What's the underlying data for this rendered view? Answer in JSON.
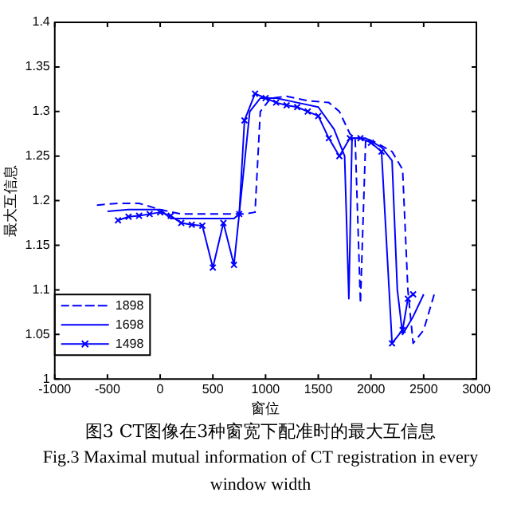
{
  "chart_data": {
    "type": "line",
    "title": "图3   CT图像在3种窗宽下配准时的最大互信息",
    "subtitle": "Fig.3   Maximal mutual information of CT registration in every window width",
    "xlabel": "窗位",
    "ylabel": "最大互信息",
    "xlim": [
      -1000,
      3000
    ],
    "xticks": [
      -1000,
      -500,
      0,
      500,
      1000,
      1500,
      2000,
      2500,
      3000
    ],
    "ylim": [
      1,
      1.4
    ],
    "yticks": [
      1,
      1.05,
      1.1,
      1.15,
      1.2,
      1.25,
      1.3,
      1.35,
      1.4
    ],
    "grid": false,
    "legend": "bottom left",
    "series": [
      {
        "name": "1898",
        "color": "#0000ff",
        "line_style": "dashed",
        "marker": "none",
        "x": [
          -600,
          -400,
          -200,
          0,
          200,
          400,
          600,
          800,
          900,
          950,
          1050,
          1200,
          1400,
          1600,
          1700,
          1800,
          1850,
          1900,
          1950,
          2050,
          2200,
          2300,
          2350,
          2400,
          2500,
          2600
        ],
        "values": [
          1.195,
          1.197,
          1.197,
          1.19,
          1.185,
          1.185,
          1.185,
          1.185,
          1.187,
          1.3,
          1.315,
          1.317,
          1.312,
          1.31,
          1.3,
          1.275,
          1.27,
          1.085,
          1.27,
          1.265,
          1.255,
          1.235,
          1.1,
          1.04,
          1.055,
          1.095
        ]
      },
      {
        "name": "1698",
        "color": "#0000ff",
        "line_style": "solid",
        "marker": "none",
        "x": [
          -500,
          -300,
          0,
          100,
          300,
          500,
          700,
          750,
          850,
          950,
          1100,
          1300,
          1500,
          1650,
          1750,
          1790,
          1820,
          1950,
          2100,
          2200,
          2250,
          2300,
          2400,
          2500
        ],
        "values": [
          1.188,
          1.19,
          1.19,
          1.18,
          1.18,
          1.18,
          1.18,
          1.185,
          1.3,
          1.315,
          1.315,
          1.31,
          1.305,
          1.28,
          1.25,
          1.09,
          1.27,
          1.27,
          1.26,
          1.245,
          1.1,
          1.05,
          1.07,
          1.095
        ]
      },
      {
        "name": "1498",
        "color": "#0000ff",
        "line_style": "solid",
        "marker": "cross",
        "x": [
          -400,
          -300,
          -200,
          -100,
          0,
          100,
          200,
          300,
          400,
          500,
          600,
          700,
          750,
          800,
          900,
          1000,
          1100,
          1200,
          1300,
          1400,
          1500,
          1600,
          1700,
          1800,
          1900,
          2000,
          2100,
          2200,
          2300,
          2350,
          2400
        ],
        "values": [
          1.178,
          1.182,
          1.183,
          1.185,
          1.187,
          1.183,
          1.175,
          1.173,
          1.172,
          1.125,
          1.175,
          1.128,
          1.185,
          1.29,
          1.32,
          1.315,
          1.31,
          1.307,
          1.305,
          1.3,
          1.295,
          1.27,
          1.25,
          1.27,
          1.27,
          1.265,
          1.255,
          1.04,
          1.055,
          1.09,
          1.095
        ]
      }
    ]
  }
}
